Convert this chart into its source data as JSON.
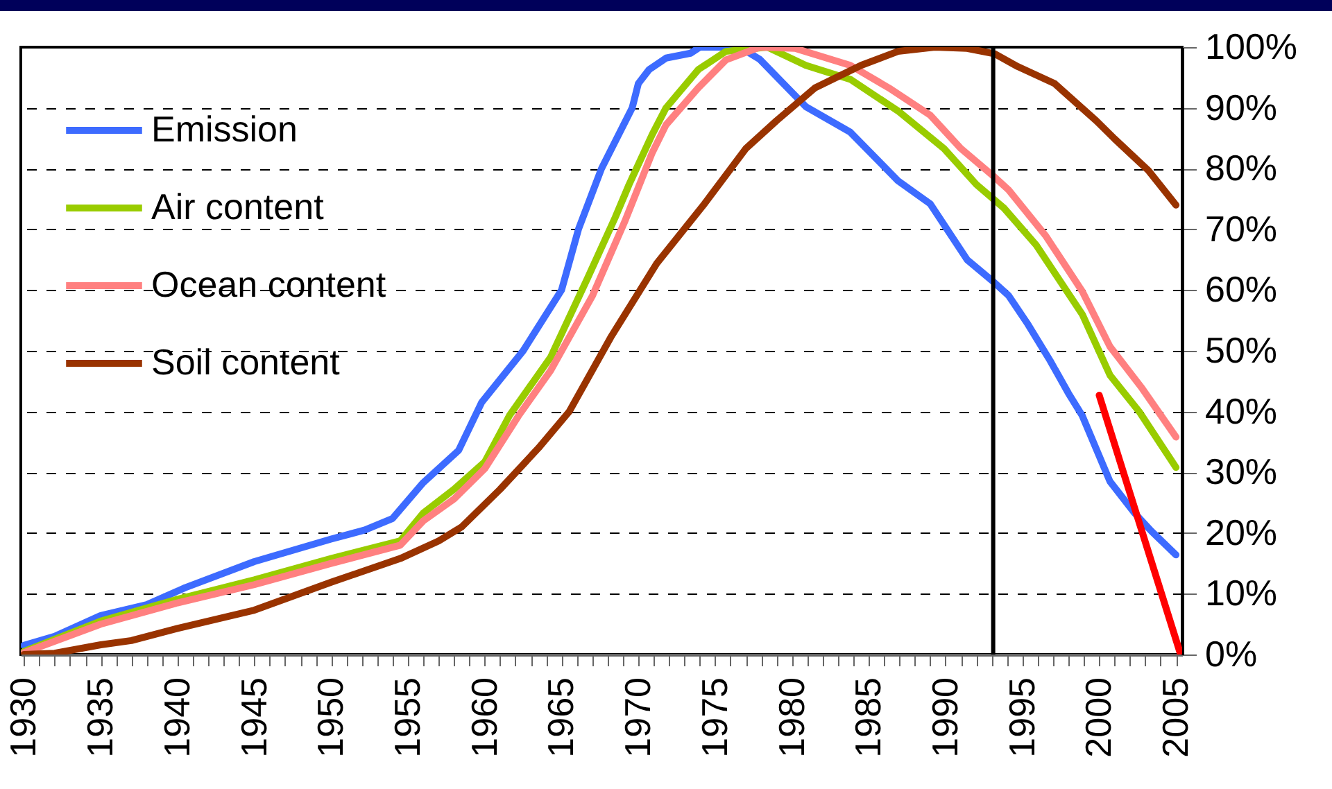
{
  "chart_data": {
    "type": "line",
    "legend": "top left",
    "grid": "y",
    "line_style": "solid",
    "marker": "none",
    "xlim": [
      1929.8,
      2005.4
    ],
    "xticks": [
      1930,
      {
        "value": 1931,
        "label": null
      },
      {
        "value": 1932,
        "label": null
      },
      {
        "value": 1933,
        "label": null
      },
      {
        "value": 1934,
        "label": null
      },
      1935,
      {
        "value": 1936,
        "label": null
      },
      {
        "value": 1937,
        "label": null
      },
      {
        "value": 1938,
        "label": null
      },
      {
        "value": 1939,
        "label": null
      },
      1940,
      {
        "value": 1941,
        "label": null
      },
      {
        "value": 1942,
        "label": null
      },
      {
        "value": 1943,
        "label": null
      },
      {
        "value": 1944,
        "label": null
      },
      1945,
      {
        "value": 1946,
        "label": null
      },
      {
        "value": 1947,
        "label": null
      },
      {
        "value": 1948,
        "label": null
      },
      {
        "value": 1949,
        "label": null
      },
      1950,
      {
        "value": 1951,
        "label": null
      },
      {
        "value": 1952,
        "label": null
      },
      {
        "value": 1953,
        "label": null
      },
      {
        "value": 1954,
        "label": null
      },
      1955,
      {
        "value": 1956,
        "label": null
      },
      {
        "value": 1957,
        "label": null
      },
      {
        "value": 1958,
        "label": null
      },
      {
        "value": 1959,
        "label": null
      },
      1960,
      {
        "value": 1961,
        "label": null
      },
      {
        "value": 1962,
        "label": null
      },
      {
        "value": 1963,
        "label": null
      },
      {
        "value": 1964,
        "label": null
      },
      1965,
      {
        "value": 1966,
        "label": null
      },
      {
        "value": 1967,
        "label": null
      },
      {
        "value": 1968,
        "label": null
      },
      {
        "value": 1969,
        "label": null
      },
      1970,
      {
        "value": 1971,
        "label": null
      },
      {
        "value": 1972,
        "label": null
      },
      {
        "value": 1973,
        "label": null
      },
      {
        "value": 1974,
        "label": null
      },
      1975,
      {
        "value": 1976,
        "label": null
      },
      {
        "value": 1977,
        "label": null
      },
      {
        "value": 1978,
        "label": null
      },
      {
        "value": 1979,
        "label": null
      },
      1980,
      {
        "value": 1981,
        "label": null
      },
      {
        "value": 1982,
        "label": null
      },
      {
        "value": 1983,
        "label": null
      },
      {
        "value": 1984,
        "label": null
      },
      1985,
      {
        "value": 1986,
        "label": null
      },
      {
        "value": 1987,
        "label": null
      },
      {
        "value": 1988,
        "label": null
      },
      {
        "value": 1989,
        "label": null
      },
      1990,
      {
        "value": 1991,
        "label": null
      },
      {
        "value": 1992,
        "label": null
      },
      {
        "value": 1993,
        "label": null
      },
      {
        "value": 1994,
        "label": null
      },
      1995,
      {
        "value": 1996,
        "label": null
      },
      {
        "value": 1997,
        "label": null
      },
      {
        "value": 1998,
        "label": null
      },
      {
        "value": 1999,
        "label": null
      },
      2000,
      {
        "value": 2001,
        "label": null
      },
      {
        "value": 2002,
        "label": null
      },
      {
        "value": 2003,
        "label": null
      },
      {
        "value": 2004,
        "label": null
      },
      2005
    ],
    "ylim": [
      0,
      100
    ],
    "yticks": [
      {
        "value": 0,
        "label": "0%"
      },
      {
        "value": 10,
        "label": "10%"
      },
      {
        "value": 20,
        "label": "20%"
      },
      {
        "value": 30,
        "label": "30%"
      },
      {
        "value": 40,
        "label": "40%"
      },
      {
        "value": 50,
        "label": "50%"
      },
      {
        "value": 60,
        "label": "60%"
      },
      {
        "value": 70,
        "label": "70%"
      },
      {
        "value": 80,
        "label": "80%"
      },
      {
        "value": 90,
        "label": "90%"
      },
      {
        "value": 100,
        "label": "100%"
      }
    ],
    "ref_lines": [
      {
        "axis": "x",
        "value": 1993.1,
        "color": "#000000",
        "line_style": "solid"
      }
    ],
    "series": [
      {
        "name": "Emission",
        "color": "#3d6bff",
        "x": [
          1930,
          1932,
          1935,
          1938,
          1940.5,
          1945,
          1950,
          1952.2,
          1954,
          1956,
          1958.3,
          1959.8,
          1962.5,
          1965,
          1966.1,
          1967.6,
          1969.6,
          1970,
          1970.7,
          1971.8,
          1973.4,
          1974,
          1976.6,
          1977.9,
          1980.9,
          1983.8,
          1986.9,
          1989,
          1991.4,
          1993.1,
          1994.1,
          1995.3,
          1996.8,
          1998,
          1998.9,
          2000.7,
          2002.3,
          2003.4,
          2005
        ],
        "values": [
          1.5,
          3,
          6.4,
          8.2,
          11,
          15.3,
          19,
          20.5,
          22.4,
          28.3,
          33.6,
          41.5,
          50,
          60,
          70,
          80,
          90,
          94,
          96.3,
          98.2,
          99,
          100,
          100,
          98,
          90.2,
          86,
          78,
          74.2,
          65,
          61.4,
          59.1,
          54.6,
          48.4,
          43,
          39.3,
          28.5,
          23.3,
          20.3,
          16.4
        ]
      },
      {
        "name": "Air content",
        "color": "#99cc00",
        "x": [
          1930,
          1935,
          1940,
          1945,
          1950,
          1954.5,
          1956,
          1958,
          1960,
          1961.6,
          1964.3,
          1966.7,
          1968.5,
          1969.4,
          1970.9,
          1971.8,
          1973.9,
          1975.7,
          1978.4,
          1980.9,
          1983.8,
          1986.9,
          1989.9,
          1992,
          1993.8,
          1995.9,
          1998.9,
          2000.7,
          2002.6,
          2005
        ],
        "values": [
          0.5,
          5.5,
          9.1,
          12.3,
          15.8,
          18.7,
          23.3,
          27.2,
          31.7,
          39.3,
          49,
          62,
          72,
          77.4,
          85.6,
          90,
          96.3,
          99.3,
          100,
          97,
          94.7,
          89.5,
          83.3,
          77.4,
          73.5,
          67.4,
          56,
          46,
          40,
          30.8
        ]
      },
      {
        "name": "Ocean content",
        "color": "#ff8080",
        "x": [
          1930,
          1935,
          1940,
          1945,
          1950,
          1954.5,
          1956,
          1958,
          1960,
          1962.2,
          1964.3,
          1967,
          1969.1,
          1970.9,
          1971.8,
          1973.9,
          1975.7,
          1977.9,
          1980.2,
          1983.8,
          1986.3,
          1989,
          1991,
          1993.1,
          1994.1,
          1996.5,
          1998.9,
          2000.7,
          2002.8,
          2005
        ],
        "values": [
          0.3,
          5,
          8.5,
          11.5,
          15,
          18,
          22,
          25.6,
          30.6,
          39.3,
          46.8,
          59,
          71.2,
          82.6,
          87.2,
          93.3,
          97.9,
          100,
          99.8,
          97,
          93.3,
          88.8,
          83.3,
          78.8,
          76.5,
          69,
          59.8,
          50.7,
          43.8,
          35.8
        ]
      },
      {
        "name": "Soil content",
        "color": "#993300",
        "x": [
          1930,
          1932,
          1935,
          1937,
          1940,
          1945,
          1950,
          1954.5,
          1957,
          1958.5,
          1961,
          1963.5,
          1965.5,
          1968.2,
          1971.2,
          1974.3,
          1977,
          1979,
          1981.5,
          1984.5,
          1986.9,
          1989.3,
          1991.4,
          1993.2,
          1994.7,
          1997.1,
          1999.8,
          2001,
          2003.2,
          2005
        ],
        "values": [
          0,
          0.2,
          1.6,
          2.3,
          4.3,
          7.3,
          11.9,
          15.8,
          18.7,
          21,
          27.2,
          34,
          40,
          52.2,
          64.4,
          74.2,
          83.3,
          87.9,
          93.3,
          97,
          99.3,
          100,
          99.8,
          98.9,
          96.8,
          94,
          87.9,
          84.9,
          79.7,
          74
        ]
      },
      {
        "type": "line",
        "color": "#ff0000",
        "x": [
          2000,
          2005.3
        ],
        "values": [
          42.7,
          0
        ]
      }
    ]
  }
}
